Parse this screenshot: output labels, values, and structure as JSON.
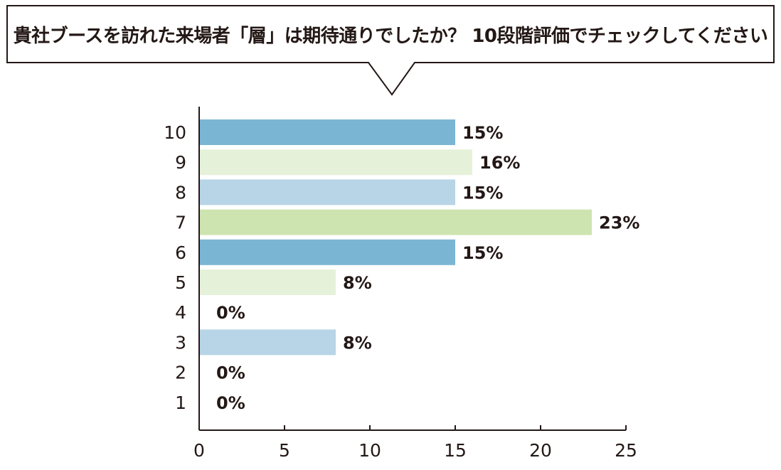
{
  "chart_data": {
    "type": "bar",
    "orientation": "horizontal",
    "title": "貴社ブースを訪れた来場者「層」は期待通りでしたか？ 10段階評価でチェックしてください",
    "categories": [
      "10",
      "9",
      "8",
      "7",
      "6",
      "5",
      "4",
      "3",
      "2",
      "1"
    ],
    "values": [
      15,
      16,
      15,
      23,
      15,
      8,
      0,
      8,
      0,
      0
    ],
    "data_labels": [
      "15%",
      "16%",
      "15%",
      "23%",
      "15%",
      "8%",
      "0%",
      "8%",
      "0%",
      "0%"
    ],
    "colors": [
      "#7ab6d4",
      "#e6f1da",
      "#b7d5e6",
      "#cee4b0",
      "#7ab6d4",
      "#e6f1da",
      "#b7d5e6",
      "#b7d5e6",
      "#7ab6d4",
      "#e6f1da"
    ],
    "xlim": [
      0,
      25
    ],
    "xticks": [
      0,
      5,
      10,
      15,
      20,
      25
    ],
    "xlabel": "",
    "ylabel": "",
    "grid": false,
    "legend": "none"
  }
}
